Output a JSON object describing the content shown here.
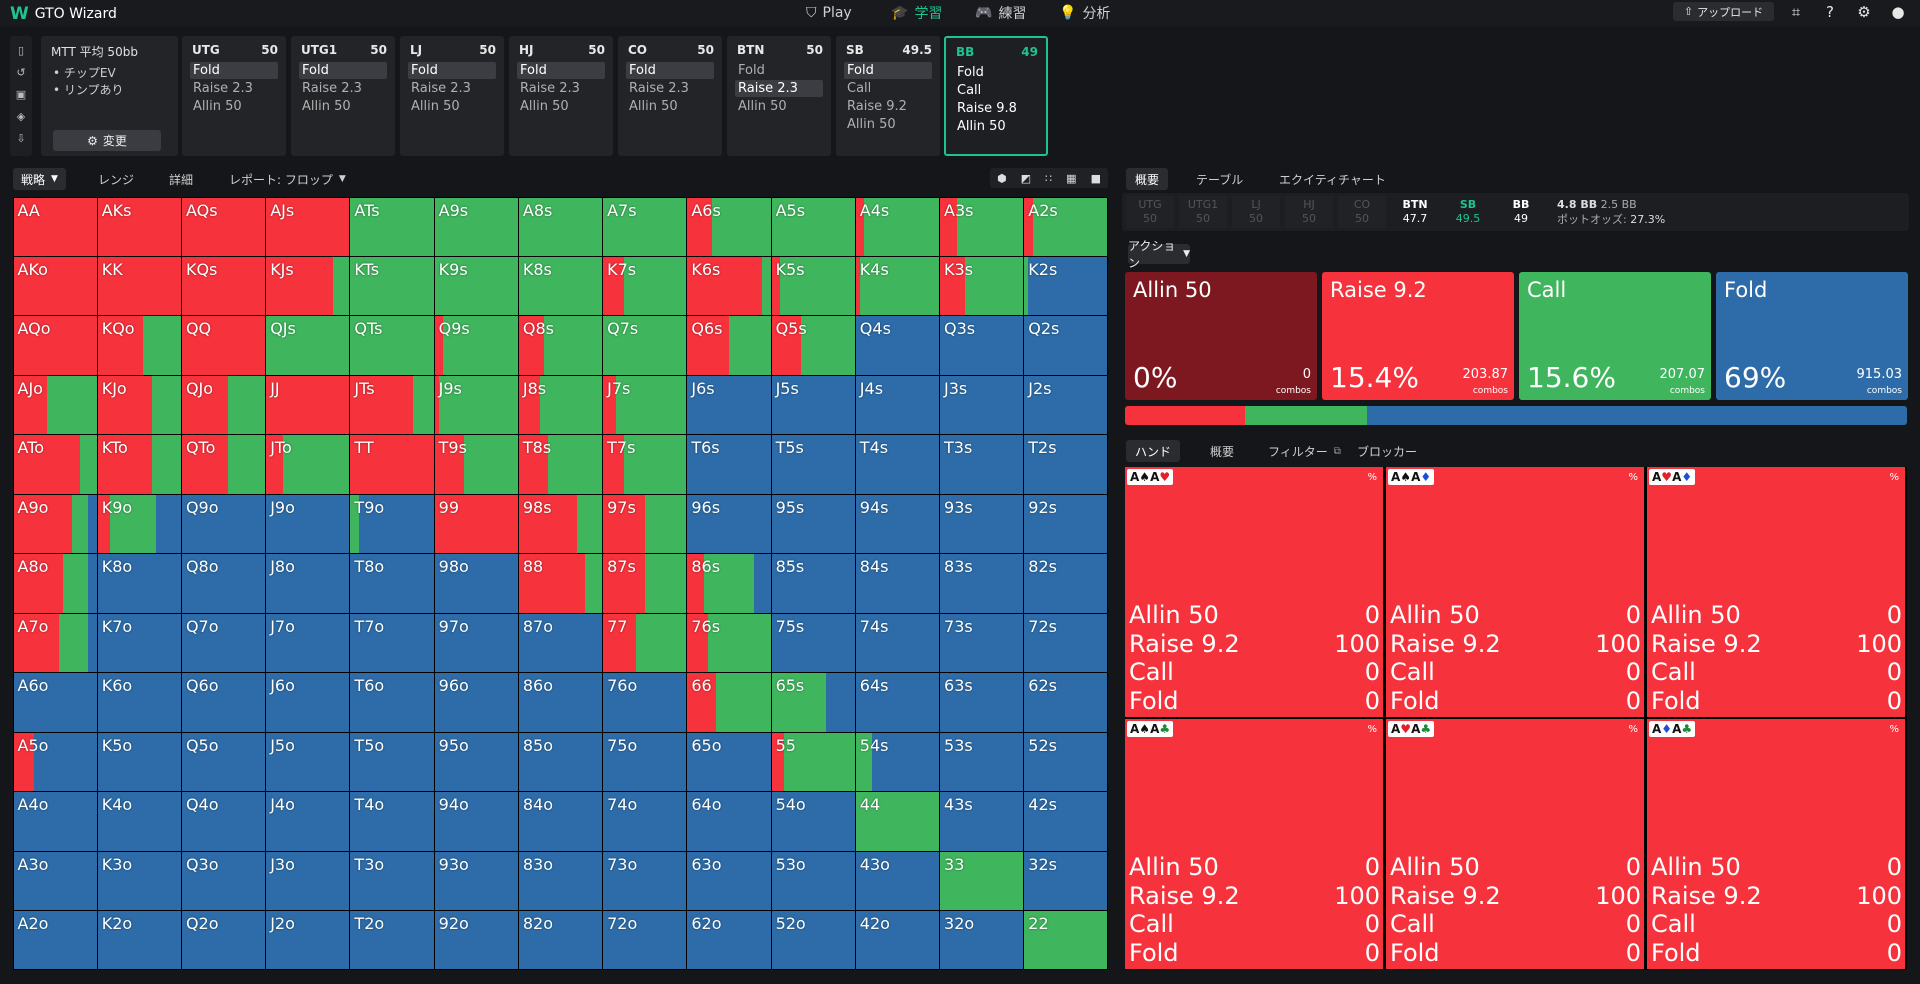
{
  "app": {
    "logo": "W",
    "title": "GTO Wizard"
  },
  "nav": [
    {
      "icon": "⛉",
      "label": "Play",
      "active": false
    },
    {
      "icon": "🎓",
      "label": "学習",
      "active": true
    },
    {
      "icon": "🎮",
      "label": "練習",
      "active": false
    },
    {
      "icon": "💡",
      "label": "分析",
      "active": false
    }
  ],
  "topright": {
    "upload_label": "アップロード",
    "upload_icon": "⇧"
  },
  "mtt": {
    "title": "MTT 平均 50bb",
    "bullet1": "• チップEV",
    "bullet2": "• リンプあり",
    "change_label": "変更",
    "change_icon": "⚙"
  },
  "positions": [
    {
      "name": "UTG",
      "stack": "50",
      "options": [
        "Fold",
        "Raise 2.3",
        "Allin 50"
      ],
      "selected": 0
    },
    {
      "name": "UTG1",
      "stack": "50",
      "options": [
        "Fold",
        "Raise 2.3",
        "Allin 50"
      ],
      "selected": 0
    },
    {
      "name": "LJ",
      "stack": "50",
      "options": [
        "Fold",
        "Raise 2.3",
        "Allin 50"
      ],
      "selected": 0
    },
    {
      "name": "HJ",
      "stack": "50",
      "options": [
        "Fold",
        "Raise 2.3",
        "Allin 50"
      ],
      "selected": 0
    },
    {
      "name": "CO",
      "stack": "50",
      "options": [
        "Fold",
        "Raise 2.3",
        "Allin 50"
      ],
      "selected": 0
    },
    {
      "name": "BTN",
      "stack": "50",
      "options": [
        "Fold",
        "Raise 2.3",
        "Allin 50"
      ],
      "selected": 1
    },
    {
      "name": "SB",
      "stack": "49.5",
      "options": [
        "Fold",
        "Call",
        "Raise 9.2",
        "Allin 50"
      ],
      "selected": 0
    },
    {
      "name": "BB",
      "stack": "49",
      "options": [
        "Fold",
        "Call",
        "Raise 9.8",
        "Allin 50"
      ],
      "selected": -1,
      "active": true
    }
  ],
  "left_tabs": {
    "strategy": "戦略",
    "range": "レンジ",
    "details": "詳細",
    "report": "レポート: フロップ"
  },
  "colors": {
    "allin": "#7e1820",
    "raise": "#f6323c",
    "call": "#3fb55d",
    "fold": "#2d6ca8"
  },
  "matrix": [
    [
      "AA",
      "AKs",
      "AQs",
      "AJs",
      "ATs",
      "A9s",
      "A8s",
      "A7s",
      "A6s",
      "A5s",
      "A4s",
      "A3s",
      "A2s"
    ],
    [
      "AKo",
      "KK",
      "KQs",
      "KJs",
      "KTs",
      "K9s",
      "K8s",
      "K7s",
      "K6s",
      "K5s",
      "K4s",
      "K3s",
      "K2s"
    ],
    [
      "AQo",
      "KQo",
      "QQ",
      "QJs",
      "QTs",
      "Q9s",
      "Q8s",
      "Q7s",
      "Q6s",
      "Q5s",
      "Q4s",
      "Q3s",
      "Q2s"
    ],
    [
      "AJo",
      "KJo",
      "QJo",
      "JJ",
      "JTs",
      "J9s",
      "J8s",
      "J7s",
      "J6s",
      "J5s",
      "J4s",
      "J3s",
      "J2s"
    ],
    [
      "ATo",
      "KTo",
      "QTo",
      "JTo",
      "TT",
      "T9s",
      "T8s",
      "T7s",
      "T6s",
      "T5s",
      "T4s",
      "T3s",
      "T2s"
    ],
    [
      "A9o",
      "K9o",
      "Q9o",
      "J9o",
      "T9o",
      "99",
      "98s",
      "97s",
      "96s",
      "95s",
      "94s",
      "93s",
      "92s"
    ],
    [
      "A8o",
      "K8o",
      "Q8o",
      "J8o",
      "T8o",
      "98o",
      "88",
      "87s",
      "86s",
      "85s",
      "84s",
      "83s",
      "82s"
    ],
    [
      "A7o",
      "K7o",
      "Q7o",
      "J7o",
      "T7o",
      "97o",
      "87o",
      "77",
      "76s",
      "75s",
      "74s",
      "73s",
      "72s"
    ],
    [
      "A6o",
      "K6o",
      "Q6o",
      "J6o",
      "T6o",
      "96o",
      "86o",
      "76o",
      "66",
      "65s",
      "64s",
      "63s",
      "62s"
    ],
    [
      "A5o",
      "K5o",
      "Q5o",
      "J5o",
      "T5o",
      "95o",
      "85o",
      "75o",
      "65o",
      "55",
      "54s",
      "53s",
      "52s"
    ],
    [
      "A4o",
      "K4o",
      "Q4o",
      "J4o",
      "T4o",
      "94o",
      "84o",
      "74o",
      "64o",
      "54o",
      "44",
      "43s",
      "42s"
    ],
    [
      "A3o",
      "K3o",
      "Q3o",
      "J3o",
      "T3o",
      "93o",
      "83o",
      "73o",
      "63o",
      "53o",
      "43o",
      "33",
      "32s"
    ],
    [
      "A2o",
      "K2o",
      "Q2o",
      "J2o",
      "T2o",
      "92o",
      "82o",
      "72o",
      "62o",
      "52o",
      "42o",
      "32o",
      "22"
    ]
  ],
  "matrix_mix": [
    [
      [
        1,
        0
      ],
      [
        1,
        0
      ],
      [
        1,
        0
      ],
      [
        1,
        0
      ],
      [
        0,
        1
      ],
      [
        0,
        1
      ],
      [
        0,
        1
      ],
      [
        0,
        1
      ],
      [
        0.3,
        0.7
      ],
      [
        0,
        1
      ],
      [
        0.1,
        0.9
      ],
      [
        0.2,
        0.8
      ],
      [
        0.1,
        0.9
      ]
    ],
    [
      [
        1,
        0
      ],
      [
        1,
        0
      ],
      [
        1,
        0
      ],
      [
        0.8,
        0.2
      ],
      [
        0,
        1
      ],
      [
        0,
        1
      ],
      [
        0,
        1
      ],
      [
        0.25,
        0.75
      ],
      [
        0.9,
        0.1
      ],
      [
        0.1,
        0.9
      ],
      [
        0.05,
        0.95
      ],
      [
        0.3,
        0.7
      ],
      [
        0,
        0.05
      ]
    ],
    [
      [
        1,
        0
      ],
      [
        0.55,
        0.45
      ],
      [
        1,
        0
      ],
      [
        0,
        1
      ],
      [
        0,
        1
      ],
      [
        0.1,
        0.9
      ],
      [
        0.3,
        0.7
      ],
      [
        0,
        1
      ],
      [
        0.5,
        0.5
      ],
      [
        0.35,
        0.65
      ],
      [
        0,
        0
      ],
      [
        0,
        0
      ],
      [
        0,
        0
      ]
    ],
    [
      [
        0.4,
        0.6
      ],
      [
        0.65,
        0.35
      ],
      [
        0.55,
        0.45
      ],
      [
        1,
        0
      ],
      [
        0.75,
        0.25
      ],
      [
        0.05,
        0.95
      ],
      [
        0.25,
        0.75
      ],
      [
        0.15,
        0.85
      ],
      [
        0,
        0
      ],
      [
        0,
        0
      ],
      [
        0,
        0
      ],
      [
        0,
        0
      ],
      [
        0,
        0
      ]
    ],
    [
      [
        0.8,
        0.2
      ],
      [
        0.65,
        0.35
      ],
      [
        0.55,
        0.45
      ],
      [
        0.2,
        0.8
      ],
      [
        1,
        0
      ],
      [
        0.35,
        0.65
      ],
      [
        0.35,
        0.65
      ],
      [
        0.25,
        0.75
      ],
      [
        0,
        0
      ],
      [
        0,
        0
      ],
      [
        0,
        0
      ],
      [
        0,
        0
      ],
      [
        0,
        0
      ]
    ],
    [
      [
        0.7,
        0.2
      ],
      [
        0.15,
        0.55
      ],
      [
        0,
        0
      ],
      [
        0,
        0
      ],
      [
        0,
        0.1
      ],
      [
        1,
        0
      ],
      [
        0.7,
        0.3
      ],
      [
        0.5,
        0.5
      ],
      [
        0,
        0
      ],
      [
        0,
        0
      ],
      [
        0,
        0
      ],
      [
        0,
        0
      ],
      [
        0,
        0
      ]
    ],
    [
      [
        0.6,
        0.3
      ],
      [
        0,
        0
      ],
      [
        0,
        0
      ],
      [
        0,
        0
      ],
      [
        0,
        0
      ],
      [
        0,
        0
      ],
      [
        0.8,
        0.2
      ],
      [
        0.5,
        0.5
      ],
      [
        0.2,
        0.6
      ],
      [
        0,
        0
      ],
      [
        0,
        0
      ],
      [
        0,
        0
      ],
      [
        0,
        0
      ]
    ],
    [
      [
        0.55,
        0.35
      ],
      [
        0,
        0
      ],
      [
        0,
        0
      ],
      [
        0,
        0
      ],
      [
        0,
        0
      ],
      [
        0,
        0
      ],
      [
        0,
        0
      ],
      [
        0.4,
        0.6
      ],
      [
        0.25,
        0.75
      ],
      [
        0,
        0
      ],
      [
        0,
        0
      ],
      [
        0,
        0
      ],
      [
        0,
        0
      ]
    ],
    [
      [
        0,
        0
      ],
      [
        0,
        0
      ],
      [
        0,
        0
      ],
      [
        0,
        0
      ],
      [
        0,
        0
      ],
      [
        0,
        0
      ],
      [
        0,
        0
      ],
      [
        0,
        0
      ],
      [
        0.35,
        0.65
      ],
      [
        0,
        0.65
      ],
      [
        0,
        0
      ],
      [
        0,
        0
      ],
      [
        0,
        0
      ]
    ],
    [
      [
        0.25,
        0
      ],
      [
        0,
        0
      ],
      [
        0,
        0
      ],
      [
        0,
        0
      ],
      [
        0,
        0
      ],
      [
        0,
        0
      ],
      [
        0,
        0
      ],
      [
        0,
        0
      ],
      [
        0,
        0
      ],
      [
        0.15,
        0.85
      ],
      [
        0,
        0.2
      ],
      [
        0,
        0
      ],
      [
        0,
        0
      ]
    ],
    [
      [
        0,
        0
      ],
      [
        0,
        0
      ],
      [
        0,
        0
      ],
      [
        0,
        0
      ],
      [
        0,
        0
      ],
      [
        0,
        0
      ],
      [
        0,
        0
      ],
      [
        0,
        0
      ],
      [
        0,
        0
      ],
      [
        0,
        0
      ],
      [
        0,
        1
      ],
      [
        0,
        0
      ],
      [
        0,
        0
      ]
    ],
    [
      [
        0,
        0
      ],
      [
        0,
        0
      ],
      [
        0,
        0
      ],
      [
        0,
        0
      ],
      [
        0,
        0
      ],
      [
        0,
        0
      ],
      [
        0,
        0
      ],
      [
        0,
        0
      ],
      [
        0,
        0
      ],
      [
        0,
        0
      ],
      [
        0,
        0
      ],
      [
        0,
        1
      ],
      [
        0,
        0
      ]
    ],
    [
      [
        0,
        0
      ],
      [
        0,
        0
      ],
      [
        0,
        0
      ],
      [
        0,
        0
      ],
      [
        0,
        0
      ],
      [
        0,
        0
      ],
      [
        0,
        0
      ],
      [
        0,
        0
      ],
      [
        0,
        0
      ],
      [
        0,
        0
      ],
      [
        0,
        0
      ],
      [
        0,
        0
      ],
      [
        0,
        1
      ]
    ]
  ],
  "right_tabs": {
    "overview": "概要",
    "table": "テーブル",
    "equity": "エクイティチャート"
  },
  "posbar": [
    {
      "name": "UTG",
      "stack": "50",
      "state": "off"
    },
    {
      "name": "UTG1",
      "stack": "50",
      "state": "off"
    },
    {
      "name": "LJ",
      "stack": "50",
      "state": "off"
    },
    {
      "name": "HJ",
      "stack": "50",
      "state": "off"
    },
    {
      "name": "CO",
      "stack": "50",
      "state": "off"
    },
    {
      "name": "BTN",
      "stack": "47.7",
      "state": "on"
    },
    {
      "name": "SB",
      "stack": "49.5",
      "state": "hero"
    },
    {
      "name": "BB",
      "stack": "49",
      "state": "on"
    }
  ],
  "pot": {
    "pot_bb": "4.8 BB",
    "call_bb": "2.5 BB",
    "odds_label": "ポットオッズ:",
    "odds": "27.3%"
  },
  "action_dropdown": "アクション",
  "actions": [
    {
      "name": "Allin 50",
      "pct": "0%",
      "combos": "0",
      "combos_label": "combos",
      "color": "#7e1820",
      "freq": 0
    },
    {
      "name": "Raise 9.2",
      "pct": "15.4%",
      "combos": "203.87",
      "combos_label": "combos",
      "color": "#f6323c",
      "freq": 0.154
    },
    {
      "name": "Call",
      "pct": "15.6%",
      "combos": "207.07",
      "combos_label": "combos",
      "color": "#3fb55d",
      "freq": 0.156
    },
    {
      "name": "Fold",
      "pct": "69%",
      "combos": "915.03",
      "combos_label": "combos",
      "color": "#2d6ca8",
      "freq": 0.69
    }
  ],
  "hand_tabs": {
    "hand": "ハンド",
    "overview": "概要",
    "filter": "フィルター",
    "blocker": "ブロッカー"
  },
  "combos": [
    {
      "cards": [
        [
          "A",
          "♠",
          "blk"
        ],
        [
          "A",
          "♥",
          "rd"
        ]
      ],
      "pct": "%",
      "rows": [
        [
          "Allin 50",
          "0"
        ],
        [
          "Raise 9.2",
          "100"
        ],
        [
          "Call",
          "0"
        ],
        [
          "Fold",
          "0"
        ]
      ]
    },
    {
      "cards": [
        [
          "A",
          "♠",
          "blk"
        ],
        [
          "A",
          "♦",
          "bl"
        ]
      ],
      "pct": "%",
      "rows": [
        [
          "Allin 50",
          "0"
        ],
        [
          "Raise 9.2",
          "100"
        ],
        [
          "Call",
          "0"
        ],
        [
          "Fold",
          "0"
        ]
      ]
    },
    {
      "cards": [
        [
          "A",
          "♥",
          "rd"
        ],
        [
          "A",
          "♦",
          "bl"
        ]
      ],
      "pct": "%",
      "rows": [
        [
          "Allin 50",
          "0"
        ],
        [
          "Raise 9.2",
          "100"
        ],
        [
          "Call",
          "0"
        ],
        [
          "Fold",
          "0"
        ]
      ]
    },
    {
      "cards": [
        [
          "A",
          "♠",
          "blk"
        ],
        [
          "A",
          "♣",
          "gr"
        ]
      ],
      "pct": "%",
      "rows": [
        [
          "Allin 50",
          "0"
        ],
        [
          "Raise 9.2",
          "100"
        ],
        [
          "Call",
          "0"
        ],
        [
          "Fold",
          "0"
        ]
      ]
    },
    {
      "cards": [
        [
          "A",
          "♥",
          "rd"
        ],
        [
          "A",
          "♣",
          "gr"
        ]
      ],
      "pct": "%",
      "rows": [
        [
          "Allin 50",
          "0"
        ],
        [
          "Raise 9.2",
          "100"
        ],
        [
          "Call",
          "0"
        ],
        [
          "Fold",
          "0"
        ]
      ]
    },
    {
      "cards": [
        [
          "A",
          "♦",
          "bl"
        ],
        [
          "A",
          "♣",
          "gr"
        ]
      ],
      "pct": "%",
      "rows": [
        [
          "Allin 50",
          "0"
        ],
        [
          "Raise 9.2",
          "100"
        ],
        [
          "Call",
          "0"
        ],
        [
          "Fold",
          "0"
        ]
      ]
    }
  ]
}
